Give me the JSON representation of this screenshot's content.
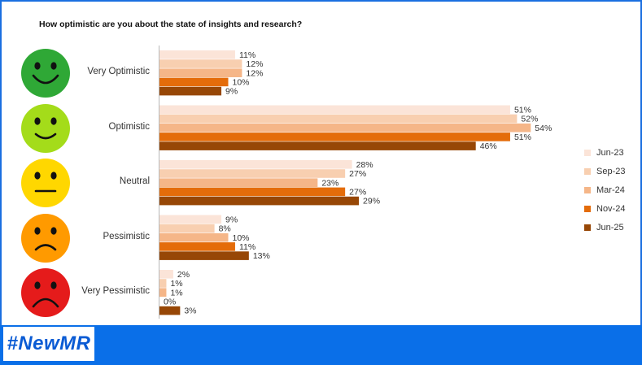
{
  "chart_data": {
    "type": "bar",
    "title": "How optimistic are you about the state of insights and research?",
    "categories": [
      "Very Optimistic",
      "Optimistic",
      "Neutral",
      "Pessimistic",
      "Very Pessimistic"
    ],
    "series": [
      {
        "name": "Jun-23",
        "color": "#fbe4d8",
        "values": [
          11,
          51,
          28,
          9,
          2
        ]
      },
      {
        "name": "Sep-23",
        "color": "#f8cfb0",
        "values": [
          12,
          52,
          27,
          8,
          1
        ]
      },
      {
        "name": "Mar-24",
        "color": "#f5b688",
        "values": [
          12,
          54,
          23,
          10,
          1
        ]
      },
      {
        "name": "Nov-24",
        "color": "#e46c0a",
        "values": [
          10,
          51,
          27,
          11,
          0
        ]
      },
      {
        "name": "Jun-25",
        "color": "#974706",
        "values": [
          9,
          46,
          29,
          13,
          3
        ]
      }
    ],
    "value_suffix": "%",
    "orientation": "horizontal",
    "legend_position": "right",
    "grid": false
  },
  "faces": [
    {
      "icon": "very-happy-face-icon",
      "color": "#2fa836"
    },
    {
      "icon": "happy-face-icon",
      "color": "#a4dc1a"
    },
    {
      "icon": "neutral-face-icon",
      "color": "#ffd700"
    },
    {
      "icon": "sad-face-icon",
      "color": "#ff9a00"
    },
    {
      "icon": "very-sad-face-icon",
      "color": "#e51b1b"
    }
  ],
  "brand": {
    "logo_text": "#NewMR",
    "footer_color": "#0a6fe8"
  }
}
